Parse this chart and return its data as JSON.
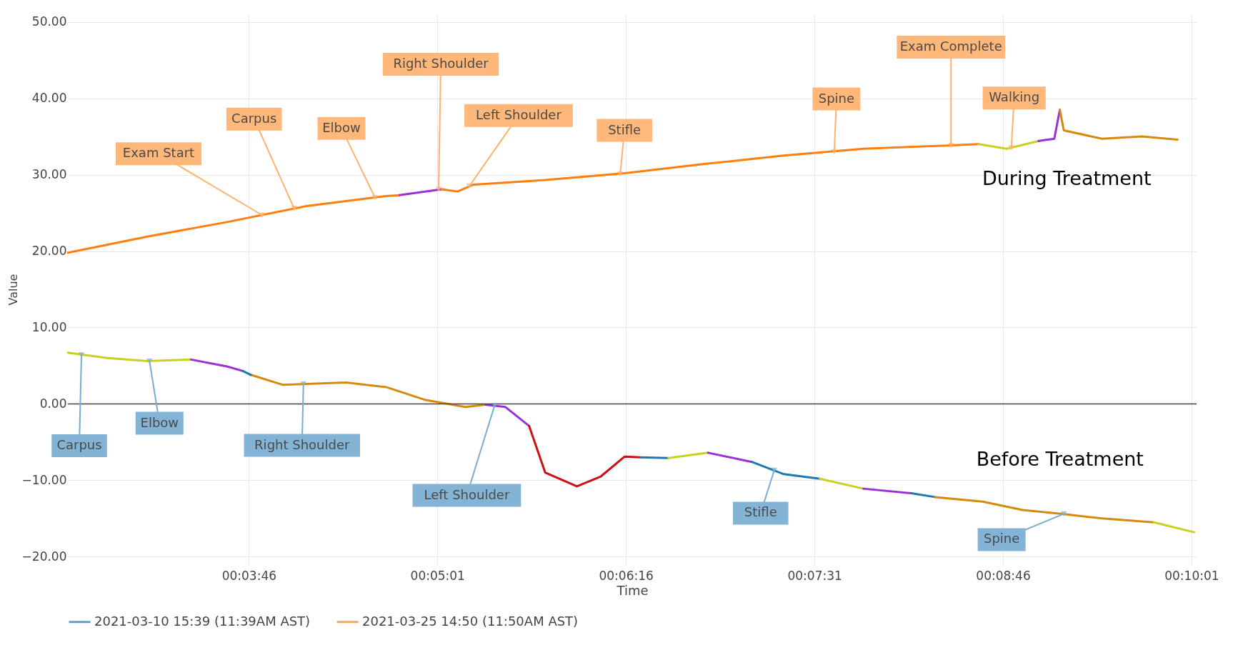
{
  "chart_data": {
    "type": "line",
    "xlabel": "Time",
    "ylabel": "Value",
    "xlim": [
      0.04278,
      0.1675
    ],
    "xticks": [
      {
        "value": 0.06278,
        "label": "00:03:46"
      },
      {
        "value": 0.08361,
        "label": "00:05:01"
      },
      {
        "value": 0.10444,
        "label": "00:06:16"
      },
      {
        "value": 0.12528,
        "label": "00:07:31"
      },
      {
        "value": 0.14611,
        "label": "00:08:46"
      },
      {
        "value": 0.16694,
        "label": "00:10:01"
      }
    ],
    "ylim": [
      -21,
      51
    ],
    "yticks": [
      {
        "value": -20,
        "label": "−20.00"
      },
      {
        "value": -10,
        "label": "−10.00"
      },
      {
        "value": 0,
        "label": "0.00"
      },
      {
        "value": 10,
        "label": "10.00"
      },
      {
        "value": 20,
        "label": "20.00"
      },
      {
        "value": 30,
        "label": "30.00"
      },
      {
        "value": 40,
        "label": "40.00"
      },
      {
        "value": 50,
        "label": "50.00"
      }
    ],
    "grid": true,
    "legend": "bottom",
    "ref_lines": [
      {
        "axis": "y",
        "value": 0,
        "color": "#444444"
      }
    ],
    "series": [
      {
        "name": "2021-03-10 15:39 (11:39AM AST)",
        "color": "#1f77b4",
        "x": [
          0.06211,
          0.063
        ],
        "values": [
          4.3,
          3.8
        ]
      },
      {
        "name": "2021-03-25 14:50 (11:50AM AST)",
        "color": "#ff7f0e",
        "x": [
          0.04278,
          0.05156,
          0.06036,
          0.06914,
          0.07794,
          0.07925
        ],
        "values": [
          19.8,
          21.9,
          23.8,
          25.9,
          27.2,
          27.3
        ]
      },
      {
        "color": "#9b30d9",
        "x": [
          0.07925,
          0.08408
        ],
        "values": [
          27.3,
          28.1
        ]
      },
      {
        "color": "#ff7f0e",
        "x": [
          0.08408,
          0.08583,
          0.08761,
          0.09553,
          0.10431,
          0.11311,
          0.12189,
          0.13069,
          0.13947,
          0.14342
        ],
        "values": [
          28.1,
          27.8,
          28.7,
          29.3,
          30.2,
          31.4,
          32.5,
          33.4,
          33.8,
          34.0
        ]
      },
      {
        "color": "#c8d21e",
        "x": [
          0.14342,
          0.1465,
          0.15003
        ],
        "values": [
          34.0,
          33.4,
          34.4
        ]
      },
      {
        "color": "#9b30d9",
        "x": [
          0.15003,
          0.15047,
          0.15178,
          0.15239
        ],
        "values": [
          34.4,
          34.5,
          34.7,
          38.5
        ]
      },
      {
        "color": "#d68a0c",
        "x": [
          0.15239,
          0.15283,
          0.15706,
          0.16144,
          0.16539
        ],
        "values": [
          38.5,
          35.8,
          34.7,
          35.0,
          34.6
        ]
      },
      {
        "color": "#c8d21e",
        "x": [
          0.04278,
          0.04717,
          0.05156,
          0.05639
        ],
        "values": [
          6.7,
          6.0,
          5.6,
          5.8
        ]
      },
      {
        "color": "#9b30d9",
        "x": [
          0.05639,
          0.06036,
          0.06211
        ],
        "values": [
          5.8,
          4.9,
          4.3
        ]
      },
      {
        "color": "#d68a0c",
        "x": [
          0.063,
          0.0665,
          0.07353,
          0.07794,
          0.08233,
          0.08672,
          0.08892
        ],
        "values": [
          3.8,
          2.5,
          2.8,
          2.2,
          0.5,
          -0.4,
          -0.1
        ]
      },
      {
        "color": "#9b30d9",
        "x": [
          0.08892,
          0.09111,
          0.09375
        ],
        "values": [
          -0.1,
          -0.4,
          -2.9
        ]
      },
      {
        "color": "#cc1111",
        "x": [
          0.09375,
          0.09553,
          0.09903,
          0.10167,
          0.10431,
          0.10606
        ],
        "values": [
          -2.9,
          -9.0,
          -10.8,
          -9.5,
          -6.9,
          -7.0
        ]
      },
      {
        "color": "#1f77b4",
        "x": [
          0.10606,
          0.10914
        ],
        "values": [
          -7.0,
          -7.1
        ]
      },
      {
        "color": "#c8d21e",
        "x": [
          0.10914,
          0.11353
        ],
        "values": [
          -7.1,
          -6.4
        ]
      },
      {
        "color": "#9b30d9",
        "x": [
          0.11353,
          0.11836
        ],
        "values": [
          -6.4,
          -7.6
        ]
      },
      {
        "color": "#1f77b4",
        "x": [
          0.11836,
          0.12189,
          0.12586
        ],
        "values": [
          -7.6,
          -9.2,
          -9.8
        ]
      },
      {
        "color": "#c8d21e",
        "x": [
          0.12586,
          0.13069
        ],
        "values": [
          -9.8,
          -11.1
        ]
      },
      {
        "color": "#9b30d9",
        "x": [
          0.13069,
          0.13597
        ],
        "values": [
          -11.1,
          -11.7
        ]
      },
      {
        "color": "#1f77b4",
        "x": [
          0.13597,
          0.13861
        ],
        "values": [
          -11.7,
          -12.2
        ]
      },
      {
        "color": "#d68a0c",
        "x": [
          0.13861,
          0.14386,
          0.14828,
          0.15267,
          0.15706,
          0.16278
        ],
        "values": [
          -12.2,
          -12.8,
          -13.9,
          -14.4,
          -15.0,
          -15.5
        ]
      },
      {
        "color": "#c8d21e",
        "x": [
          0.16278,
          0.16722
        ],
        "values": [
          -15.5,
          -16.8
        ]
      }
    ],
    "annotations": [
      {
        "text": "Exam Start",
        "x": 0.06425,
        "y": 24.7
      },
      {
        "text": "Carpus",
        "x": 0.06778,
        "y": 25.6
      },
      {
        "text": "Elbow",
        "x": 0.07672,
        "y": 27.0
      },
      {
        "text": "Right Shoulder",
        "x": 0.08375,
        "y": 28.1
      },
      {
        "text": "Left Shoulder",
        "x": 0.08714,
        "y": 28.5
      },
      {
        "text": "Stifle",
        "x": 0.10381,
        "y": 30.1
      },
      {
        "text": "Spine",
        "x": 0.12747,
        "y": 33.0
      },
      {
        "text": "Exam Complete",
        "x": 0.14036,
        "y": 33.8
      },
      {
        "text": "Walking",
        "x": 0.14703,
        "y": 33.5
      },
      {
        "text": "Carpus",
        "x": 0.04428,
        "y": 6.4
      },
      {
        "text": "Elbow",
        "x": 0.0518,
        "y": 5.6
      },
      {
        "text": "Right Shoulder",
        "x": 0.06881,
        "y": 2.6
      },
      {
        "text": "Left Shoulder",
        "x": 0.08994,
        "y": -0.2
      },
      {
        "text": "Stifle",
        "x": 0.12083,
        "y": -8.7
      },
      {
        "text": "Spine",
        "x": 0.15283,
        "y": -14.4
      },
      "During Treatment",
      "Before Treatment"
    ]
  }
}
